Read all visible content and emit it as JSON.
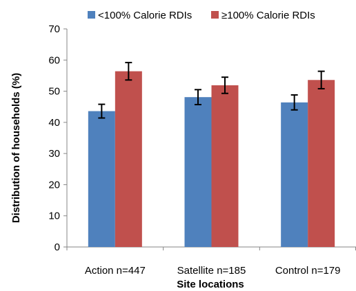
{
  "chart_data": {
    "type": "bar",
    "categories": [
      "Action n=447",
      "Satellite n=185",
      "Control n=179"
    ],
    "series": [
      {
        "name": "<100% Calorie RDIs",
        "color": "#4F81BD",
        "values": [
          43.6,
          48.1,
          46.4
        ],
        "error": [
          2.2,
          2.4,
          2.4
        ]
      },
      {
        "name": "≥100% Calorie RDIs",
        "color": "#C0504D",
        "values": [
          56.4,
          51.9,
          53.6
        ],
        "error": [
          2.8,
          2.6,
          2.8
        ]
      }
    ],
    "xlabel": "Site locations",
    "ylabel": "Distribution of households (%)",
    "ylim": [
      0,
      70
    ],
    "yticks": [
      0,
      10,
      20,
      30,
      40,
      50,
      60,
      70
    ],
    "grid": false,
    "legend_position": "top"
  }
}
